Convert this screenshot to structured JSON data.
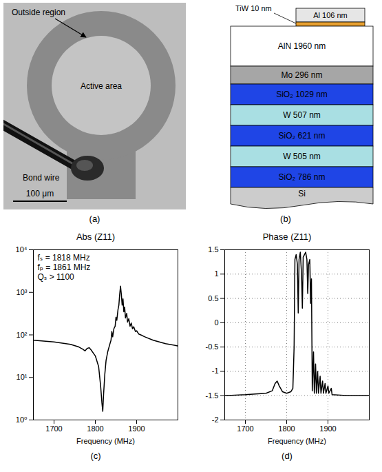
{
  "chart_data": [
    {
      "type": "line",
      "panel_label": "(c)",
      "title": "Abs (Z11)",
      "xlabel": "Frequency (MHz)",
      "log": "y",
      "grid": false,
      "color": "#000000",
      "annotations": [
        "fₛ = 1818 MHz",
        "fₚ = 1861 MHz",
        "Qₛ > 1100"
      ],
      "xlim": [
        1650,
        2000
      ],
      "xticks": [
        1700,
        1800,
        1900
      ],
      "ylim": [
        1,
        10000
      ],
      "yticks": [
        {
          "value": 1,
          "label": "10⁰"
        },
        {
          "value": 10,
          "label": "10¹"
        },
        {
          "value": 100,
          "label": "10²"
        },
        {
          "value": 1000,
          "label": "10³"
        },
        {
          "value": 10000,
          "label": "10⁴"
        }
      ],
      "x": [
        1650,
        1700,
        1740,
        1760,
        1770,
        1775,
        1780,
        1785,
        1790,
        1800,
        1808,
        1813,
        1816,
        1818,
        1820,
        1823,
        1826,
        1830,
        1835,
        1838,
        1840,
        1842,
        1845,
        1848,
        1850,
        1852,
        1855,
        1857,
        1859,
        1861,
        1863,
        1865,
        1867,
        1869,
        1871,
        1873,
        1876,
        1878,
        1881,
        1884,
        1887,
        1890,
        1893,
        1897,
        1900,
        1905,
        1910,
        1920,
        1940,
        1970,
        2000
      ],
      "values": [
        75,
        68,
        60,
        52,
        46,
        42,
        48,
        50,
        44,
        32,
        18,
        6,
        2.5,
        1.6,
        4,
        12,
        25,
        40,
        60,
        75,
        120,
        90,
        140,
        160,
        260,
        220,
        400,
        500,
        900,
        1400,
        900,
        500,
        700,
        350,
        450,
        250,
        320,
        200,
        240,
        160,
        190,
        140,
        155,
        120,
        125,
        105,
        100,
        90,
        75,
        62,
        55
      ]
    },
    {
      "type": "line",
      "panel_label": "(d)",
      "title": "Phase (Z11)",
      "xlabel": "Frequency (MHz)",
      "grid": true,
      "color": "#000000",
      "xlim": [
        1650,
        2000
      ],
      "xticks": [
        1700,
        1800,
        1900
      ],
      "ylim": [
        -2,
        1.5
      ],
      "yticks": [
        -2,
        -1.5,
        -1,
        -0.5,
        0,
        0.5,
        1,
        1.5
      ],
      "x": [
        1650,
        1700,
        1750,
        1765,
        1772,
        1777,
        1782,
        1790,
        1800,
        1810,
        1815,
        1818,
        1820,
        1823,
        1826,
        1828,
        1830,
        1833,
        1836,
        1838,
        1840,
        1843,
        1846,
        1849,
        1851,
        1853,
        1856,
        1858,
        1860,
        1862,
        1865,
        1867,
        1870,
        1872,
        1875,
        1877,
        1881,
        1883,
        1887,
        1889,
        1893,
        1895,
        1900,
        1902,
        1908,
        1910,
        1950,
        2000
      ],
      "values": [
        -1.5,
        -1.48,
        -1.45,
        -1.4,
        -1.25,
        -1.2,
        -1.3,
        -1.42,
        -1.45,
        -1.42,
        -1.35,
        -0.5,
        1.3,
        1.4,
        1.2,
        0.2,
        1.3,
        1.45,
        1.0,
        0.3,
        1.35,
        1.4,
        1.45,
        1.3,
        0.6,
        1.2,
        1.3,
        0.4,
        0.9,
        -1.4,
        -0.6,
        -1.45,
        -0.85,
        -1.45,
        -1.0,
        -1.45,
        -1.1,
        -1.45,
        -1.2,
        -1.45,
        -1.25,
        -1.45,
        -1.3,
        -1.45,
        -1.35,
        -1.48,
        -1.5,
        -1.5
      ]
    }
  ],
  "micrograph": {
    "panel_label": "(a)",
    "outside_label": "Outside region",
    "active_label": "Active area",
    "wire_label": "Bond wire",
    "scale_bar": "100 μm"
  },
  "layer_stack": {
    "panel_label": "(b)",
    "electrode": [
      {
        "label": "Al 106 nm",
        "color": "#e6e6e6"
      },
      {
        "label": "TiW 10 nm",
        "color": "#e8a030"
      }
    ],
    "layers": [
      {
        "label": "AlN 1960 nm",
        "color": "#ffffff"
      },
      {
        "label": "Mo 296 nm",
        "color": "#a6a6a6"
      },
      {
        "label": "SiO₂ 1029 nm",
        "color": "#1f45e6"
      },
      {
        "label": "W 507 nm",
        "color": "#a9dfe3"
      },
      {
        "label": "SiO₂ 621 nm",
        "color": "#1f45e6"
      },
      {
        "label": "W 505 nm",
        "color": "#a9dfe3"
      },
      {
        "label": "SiO₂ 786 nm",
        "color": "#1f45e6"
      },
      {
        "label": "Si",
        "color": "#cccccc"
      }
    ]
  }
}
